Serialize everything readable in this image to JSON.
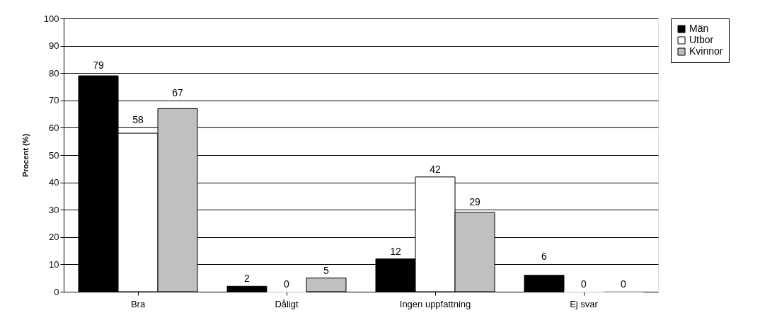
{
  "chart_data": {
    "type": "bar",
    "ylabel": "Procent (%)",
    "categories": [
      "Bra",
      "Dåligt",
      "Ingen uppfattning",
      "Ej svar"
    ],
    "series": [
      {
        "name": "Män",
        "color": "#000000",
        "values": [
          79,
          2,
          12,
          6
        ]
      },
      {
        "name": "Utbor",
        "color": "#ffffff",
        "values": [
          58,
          0,
          42,
          0
        ]
      },
      {
        "name": "Kvinnor",
        "color": "#c0c0c0",
        "values": [
          67,
          5,
          29,
          0
        ]
      }
    ],
    "ylim": [
      0,
      100
    ],
    "yticks": [
      0,
      10,
      20,
      30,
      40,
      50,
      60,
      70,
      80,
      90,
      100
    ],
    "grid": "y",
    "legend": "right",
    "data_labels": true
  }
}
